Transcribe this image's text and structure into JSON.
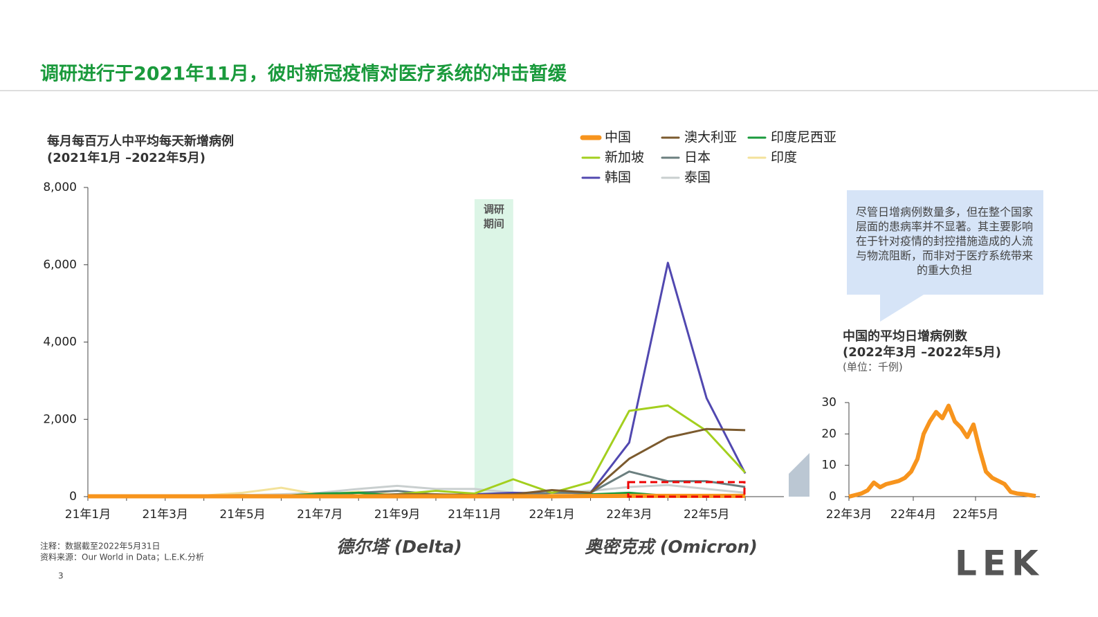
{
  "slide_title": "调研进行于2021年11月，彼时新冠疫情对医疗系统的冲击暂缓",
  "chart_data": [
    {
      "type": "line",
      "title": "每月每百万人中平均每天新增病例",
      "subtitle": "(2021年1月 –2022年5月)",
      "categories": [
        "21年1月",
        null,
        "21年3月",
        null,
        "21年5月",
        null,
        "21年7月",
        null,
        "21年9月",
        null,
        "21年11月",
        null,
        "22年1月",
        null,
        "22年3月",
        null,
        "22年5月",
        null
      ],
      "series": [
        {
          "name": "中国",
          "color": "#f7941d",
          "values": [
            10,
            10,
            10,
            10,
            10,
            10,
            10,
            10,
            10,
            10,
            10,
            10,
            10,
            15,
            20,
            20,
            20,
            20
          ]
        },
        {
          "name": "澳大利亚",
          "color": "#7b5a2e",
          "values": [
            5,
            5,
            5,
            5,
            5,
            5,
            10,
            20,
            60,
            60,
            40,
            60,
            170,
            100,
            980,
            1530,
            1750,
            1720
          ]
        },
        {
          "name": "印度尼西亚",
          "color": "#1a9a3c",
          "values": [
            30,
            30,
            20,
            20,
            20,
            20,
            80,
            100,
            30,
            10,
            5,
            5,
            10,
            60,
            100,
            20,
            10,
            10
          ]
        },
        {
          "name": "新加坡",
          "color": "#a3cf1e",
          "values": [
            5,
            5,
            5,
            5,
            10,
            20,
            20,
            30,
            60,
            150,
            80,
            450,
            100,
            380,
            2220,
            2360,
            1700,
            620
          ]
        },
        {
          "name": "日本",
          "color": "#6b7f7f",
          "values": [
            30,
            20,
            20,
            30,
            40,
            20,
            30,
            100,
            150,
            50,
            20,
            20,
            100,
            100,
            650,
            400,
            400,
            250
          ]
        },
        {
          "name": "印度",
          "color": "#f3e29a",
          "values": [
            10,
            10,
            10,
            30,
            100,
            230,
            50,
            130,
            50,
            20,
            10,
            10,
            60,
            30,
            10,
            10,
            10,
            10
          ]
        },
        {
          "name": "韩国",
          "color": "#5148b0",
          "values": [
            10,
            10,
            10,
            10,
            10,
            10,
            30,
            30,
            40,
            40,
            60,
            100,
            80,
            100,
            1400,
            6050,
            2550,
            600
          ]
        },
        {
          "name": "泰国",
          "color": "#c9cfcf",
          "values": [
            5,
            5,
            5,
            20,
            40,
            60,
            100,
            200,
            280,
            200,
            200,
            100,
            100,
            150,
            250,
            300,
            200,
            100
          ]
        }
      ],
      "ylim": [
        0,
        8000
      ],
      "yticks": [
        0,
        {
          "value": 2000,
          "label": "2,000"
        },
        {
          "value": 4000,
          "label": "4,000"
        },
        {
          "value": 6000,
          "label": "6,000"
        },
        {
          "value": 8000,
          "label": "8,000"
        }
      ],
      "legend": "top",
      "annotation": [
        "调研",
        "期间"
      ]
    },
    {
      "type": "line",
      "title": "中国的平均日增病例数",
      "subtitle": "(2022年3月 –2022年5月)",
      "unit": "(单位：千例)",
      "x": [
        0,
        3,
        6,
        9,
        12,
        15,
        18,
        21,
        24,
        27,
        30,
        33,
        36,
        39,
        42,
        45,
        48,
        51,
        54,
        57,
        60,
        63,
        66,
        69,
        72,
        75,
        78,
        81,
        84,
        87,
        90
      ],
      "values": [
        0,
        0.5,
        1,
        2,
        4.5,
        3,
        4,
        4.5,
        5,
        6,
        8,
        12,
        20,
        24,
        27,
        25,
        29,
        24,
        22,
        19,
        23,
        15,
        8,
        6,
        5,
        4,
        1.5,
        1,
        0.8,
        0.5,
        0.2
      ],
      "color": "#f7941d",
      "xlim": [
        0,
        92
      ],
      "ylim": [
        0,
        30
      ],
      "yticks": [
        0,
        10,
        20,
        30
      ],
      "xticks": [
        {
          "value": 0,
          "label": "22年3月"
        },
        {
          "value": 31,
          "label": "22年4月"
        },
        {
          "value": 61,
          "label": "22年5月"
        }
      ]
    }
  ],
  "callout": "尽管日增病例数量多，但在整个国家层面的患病率并不显著。其主要影响在于针对疫情的封控措施造成的人流与物流阻断，而非对于医疗系统带来的重大负担",
  "phases": [
    "德尔塔 (Delta)",
    "奥密克戎 (Omicron)"
  ],
  "footnote": "注释：数据截至2022年5月31日",
  "source": "资料来源：Our World in Data；L.E.K.分析",
  "page": "3",
  "logo": "LEK"
}
